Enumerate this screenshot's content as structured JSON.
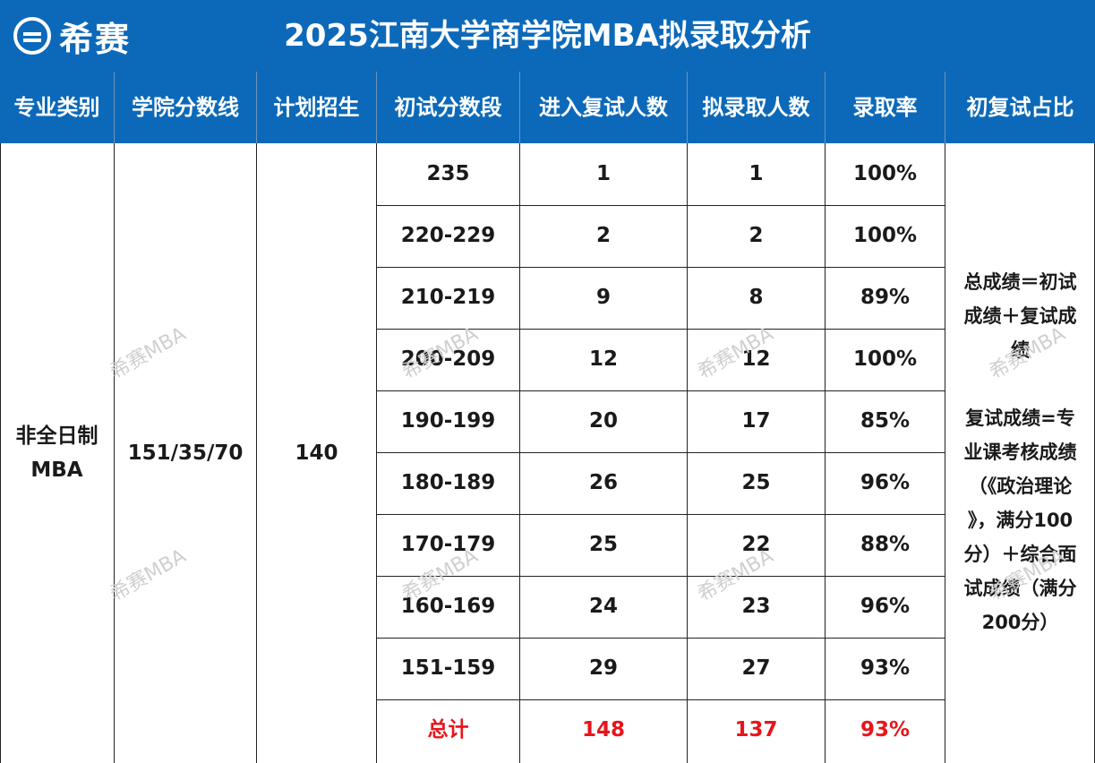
{
  "header": {
    "logo_text": "希赛",
    "title": "2025江南大学商学院MBA拟录取分析"
  },
  "columns": [
    "专业类别",
    "学院分数线",
    "计划招生",
    "初试分数段",
    "进入复试人数",
    "拟录取人数",
    "录取率",
    "初复试占比"
  ],
  "left": {
    "category_line1": "非全日制",
    "category_line2": "MBA",
    "score_line": "151/35/70",
    "plan": "140"
  },
  "rows": [
    {
      "range": "235",
      "retest": "1",
      "admit": "1",
      "rate": "100%"
    },
    {
      "range": "220-229",
      "retest": "2",
      "admit": "2",
      "rate": "100%"
    },
    {
      "range": "210-219",
      "retest": "9",
      "admit": "8",
      "rate": "89%"
    },
    {
      "range": "200-209",
      "retest": "12",
      "admit": "12",
      "rate": "100%"
    },
    {
      "range": "190-199",
      "retest": "20",
      "admit": "17",
      "rate": "85%"
    },
    {
      "range": "180-189",
      "retest": "26",
      "admit": "25",
      "rate": "96%"
    },
    {
      "range": "170-179",
      "retest": "25",
      "admit": "22",
      "rate": "88%"
    },
    {
      "range": "160-169",
      "retest": "24",
      "admit": "23",
      "rate": "96%"
    },
    {
      "range": "151-159",
      "retest": "29",
      "admit": "27",
      "rate": "93%"
    }
  ],
  "total": {
    "label": "总计",
    "retest": "148",
    "admit": "137",
    "rate": "93%"
  },
  "note": {
    "p1_lines": [
      "总成绩＝初试",
      "成绩＋复试成",
      "绩"
    ],
    "p2_lines": [
      "复试成绩=专",
      "业课考核成绩",
      "（《政治理论",
      "》，满分100",
      "分）＋综合面",
      "试成绩（满分",
      "200分）"
    ]
  },
  "watermark": "希赛MBA",
  "colors": {
    "header_bg": "#0c69b9",
    "header_text": "#ffffff",
    "total_text": "#e8141b"
  }
}
